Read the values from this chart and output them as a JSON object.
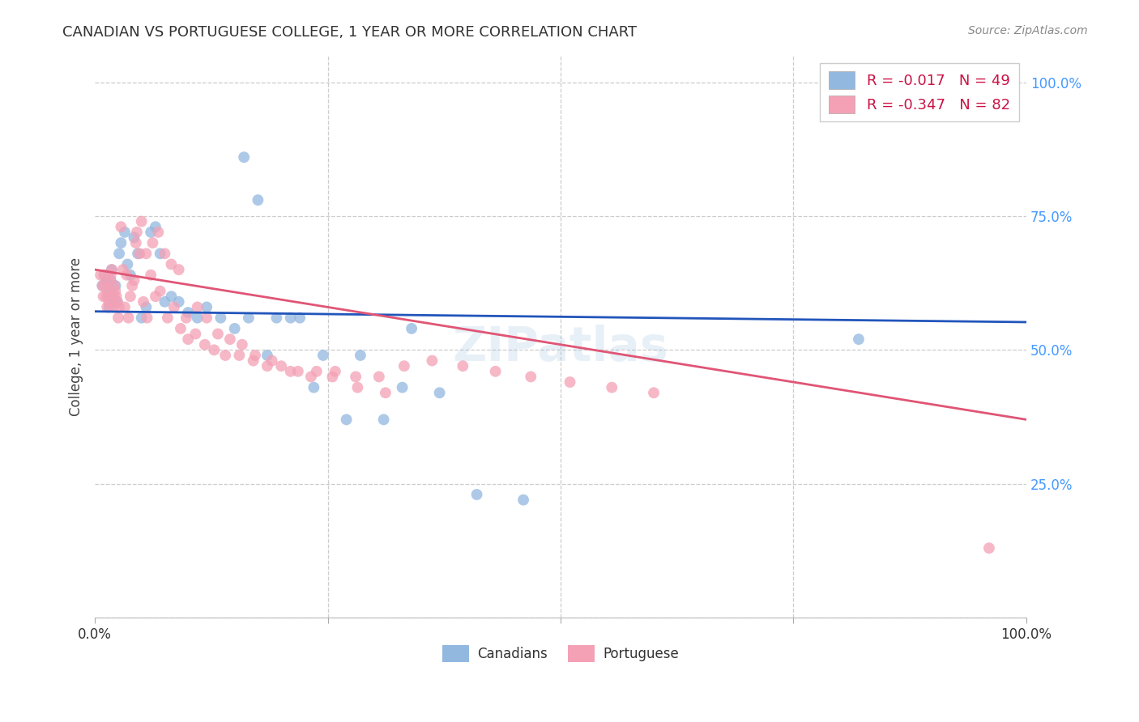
{
  "title": "CANADIAN VS PORTUGUESE COLLEGE, 1 YEAR OR MORE CORRELATION CHART",
  "source": "Source: ZipAtlas.com",
  "ylabel": "College, 1 year or more",
  "xlim": [
    0.0,
    1.0
  ],
  "ylim": [
    0.0,
    1.05
  ],
  "canadian_color": "#92b8e0",
  "portuguese_color": "#f4a0b5",
  "canadian_line_color": "#2255bb",
  "portuguese_line_color": "#e05575",
  "R_canadian": -0.017,
  "N_canadian": 49,
  "R_portuguese": -0.347,
  "N_portuguese": 82,
  "background_color": "#ffffff",
  "grid_color": "#cccccc",
  "right_axis_label_color": "#4499ff",
  "watermark": "ZIPatlas",
  "canadians_x": [
    0.008,
    0.01,
    0.012,
    0.014,
    0.015,
    0.016,
    0.017,
    0.018,
    0.02,
    0.022,
    0.024,
    0.026,
    0.028,
    0.032,
    0.035,
    0.038,
    0.042,
    0.046,
    0.05,
    0.055,
    0.06,
    0.065,
    0.07,
    0.075,
    0.082,
    0.09,
    0.1,
    0.11,
    0.12,
    0.135,
    0.15,
    0.165,
    0.185,
    0.21,
    0.235,
    0.27,
    0.31,
    0.16,
    0.175,
    0.195,
    0.22,
    0.245,
    0.285,
    0.33,
    0.37,
    0.41,
    0.46,
    0.82,
    0.34
  ],
  "canadians_y": [
    0.62,
    0.64,
    0.63,
    0.6,
    0.58,
    0.61,
    0.63,
    0.65,
    0.6,
    0.62,
    0.59,
    0.68,
    0.7,
    0.72,
    0.66,
    0.64,
    0.71,
    0.68,
    0.56,
    0.58,
    0.72,
    0.73,
    0.68,
    0.59,
    0.6,
    0.59,
    0.57,
    0.56,
    0.58,
    0.56,
    0.54,
    0.56,
    0.49,
    0.56,
    0.43,
    0.37,
    0.37,
    0.86,
    0.78,
    0.56,
    0.56,
    0.49,
    0.49,
    0.43,
    0.42,
    0.23,
    0.22,
    0.52,
    0.54
  ],
  "portuguese_x": [
    0.006,
    0.008,
    0.009,
    0.01,
    0.011,
    0.012,
    0.013,
    0.014,
    0.015,
    0.016,
    0.017,
    0.018,
    0.019,
    0.02,
    0.021,
    0.022,
    0.023,
    0.024,
    0.025,
    0.026,
    0.028,
    0.03,
    0.032,
    0.034,
    0.036,
    0.038,
    0.04,
    0.042,
    0.044,
    0.048,
    0.052,
    0.056,
    0.06,
    0.065,
    0.07,
    0.078,
    0.085,
    0.092,
    0.1,
    0.108,
    0.118,
    0.128,
    0.14,
    0.155,
    0.17,
    0.185,
    0.2,
    0.218,
    0.238,
    0.258,
    0.28,
    0.305,
    0.332,
    0.362,
    0.395,
    0.43,
    0.468,
    0.51,
    0.555,
    0.6,
    0.045,
    0.05,
    0.055,
    0.062,
    0.068,
    0.075,
    0.082,
    0.09,
    0.098,
    0.11,
    0.12,
    0.132,
    0.145,
    0.158,
    0.172,
    0.19,
    0.21,
    0.232,
    0.255,
    0.282,
    0.312,
    0.96
  ],
  "portuguese_y": [
    0.64,
    0.62,
    0.6,
    0.64,
    0.62,
    0.6,
    0.58,
    0.61,
    0.59,
    0.63,
    0.64,
    0.65,
    0.6,
    0.58,
    0.62,
    0.61,
    0.6,
    0.59,
    0.56,
    0.58,
    0.73,
    0.65,
    0.58,
    0.64,
    0.56,
    0.6,
    0.62,
    0.63,
    0.7,
    0.68,
    0.59,
    0.56,
    0.64,
    0.6,
    0.61,
    0.56,
    0.58,
    0.54,
    0.52,
    0.53,
    0.51,
    0.5,
    0.49,
    0.49,
    0.48,
    0.47,
    0.47,
    0.46,
    0.46,
    0.46,
    0.45,
    0.45,
    0.47,
    0.48,
    0.47,
    0.46,
    0.45,
    0.44,
    0.43,
    0.42,
    0.72,
    0.74,
    0.68,
    0.7,
    0.72,
    0.68,
    0.66,
    0.65,
    0.56,
    0.58,
    0.56,
    0.53,
    0.52,
    0.51,
    0.49,
    0.48,
    0.46,
    0.45,
    0.45,
    0.43,
    0.42,
    0.13
  ],
  "canadian_line_intercept": 0.572,
  "canadian_line_slope": -0.02,
  "portuguese_line_intercept": 0.65,
  "portuguese_line_slope": -0.28
}
